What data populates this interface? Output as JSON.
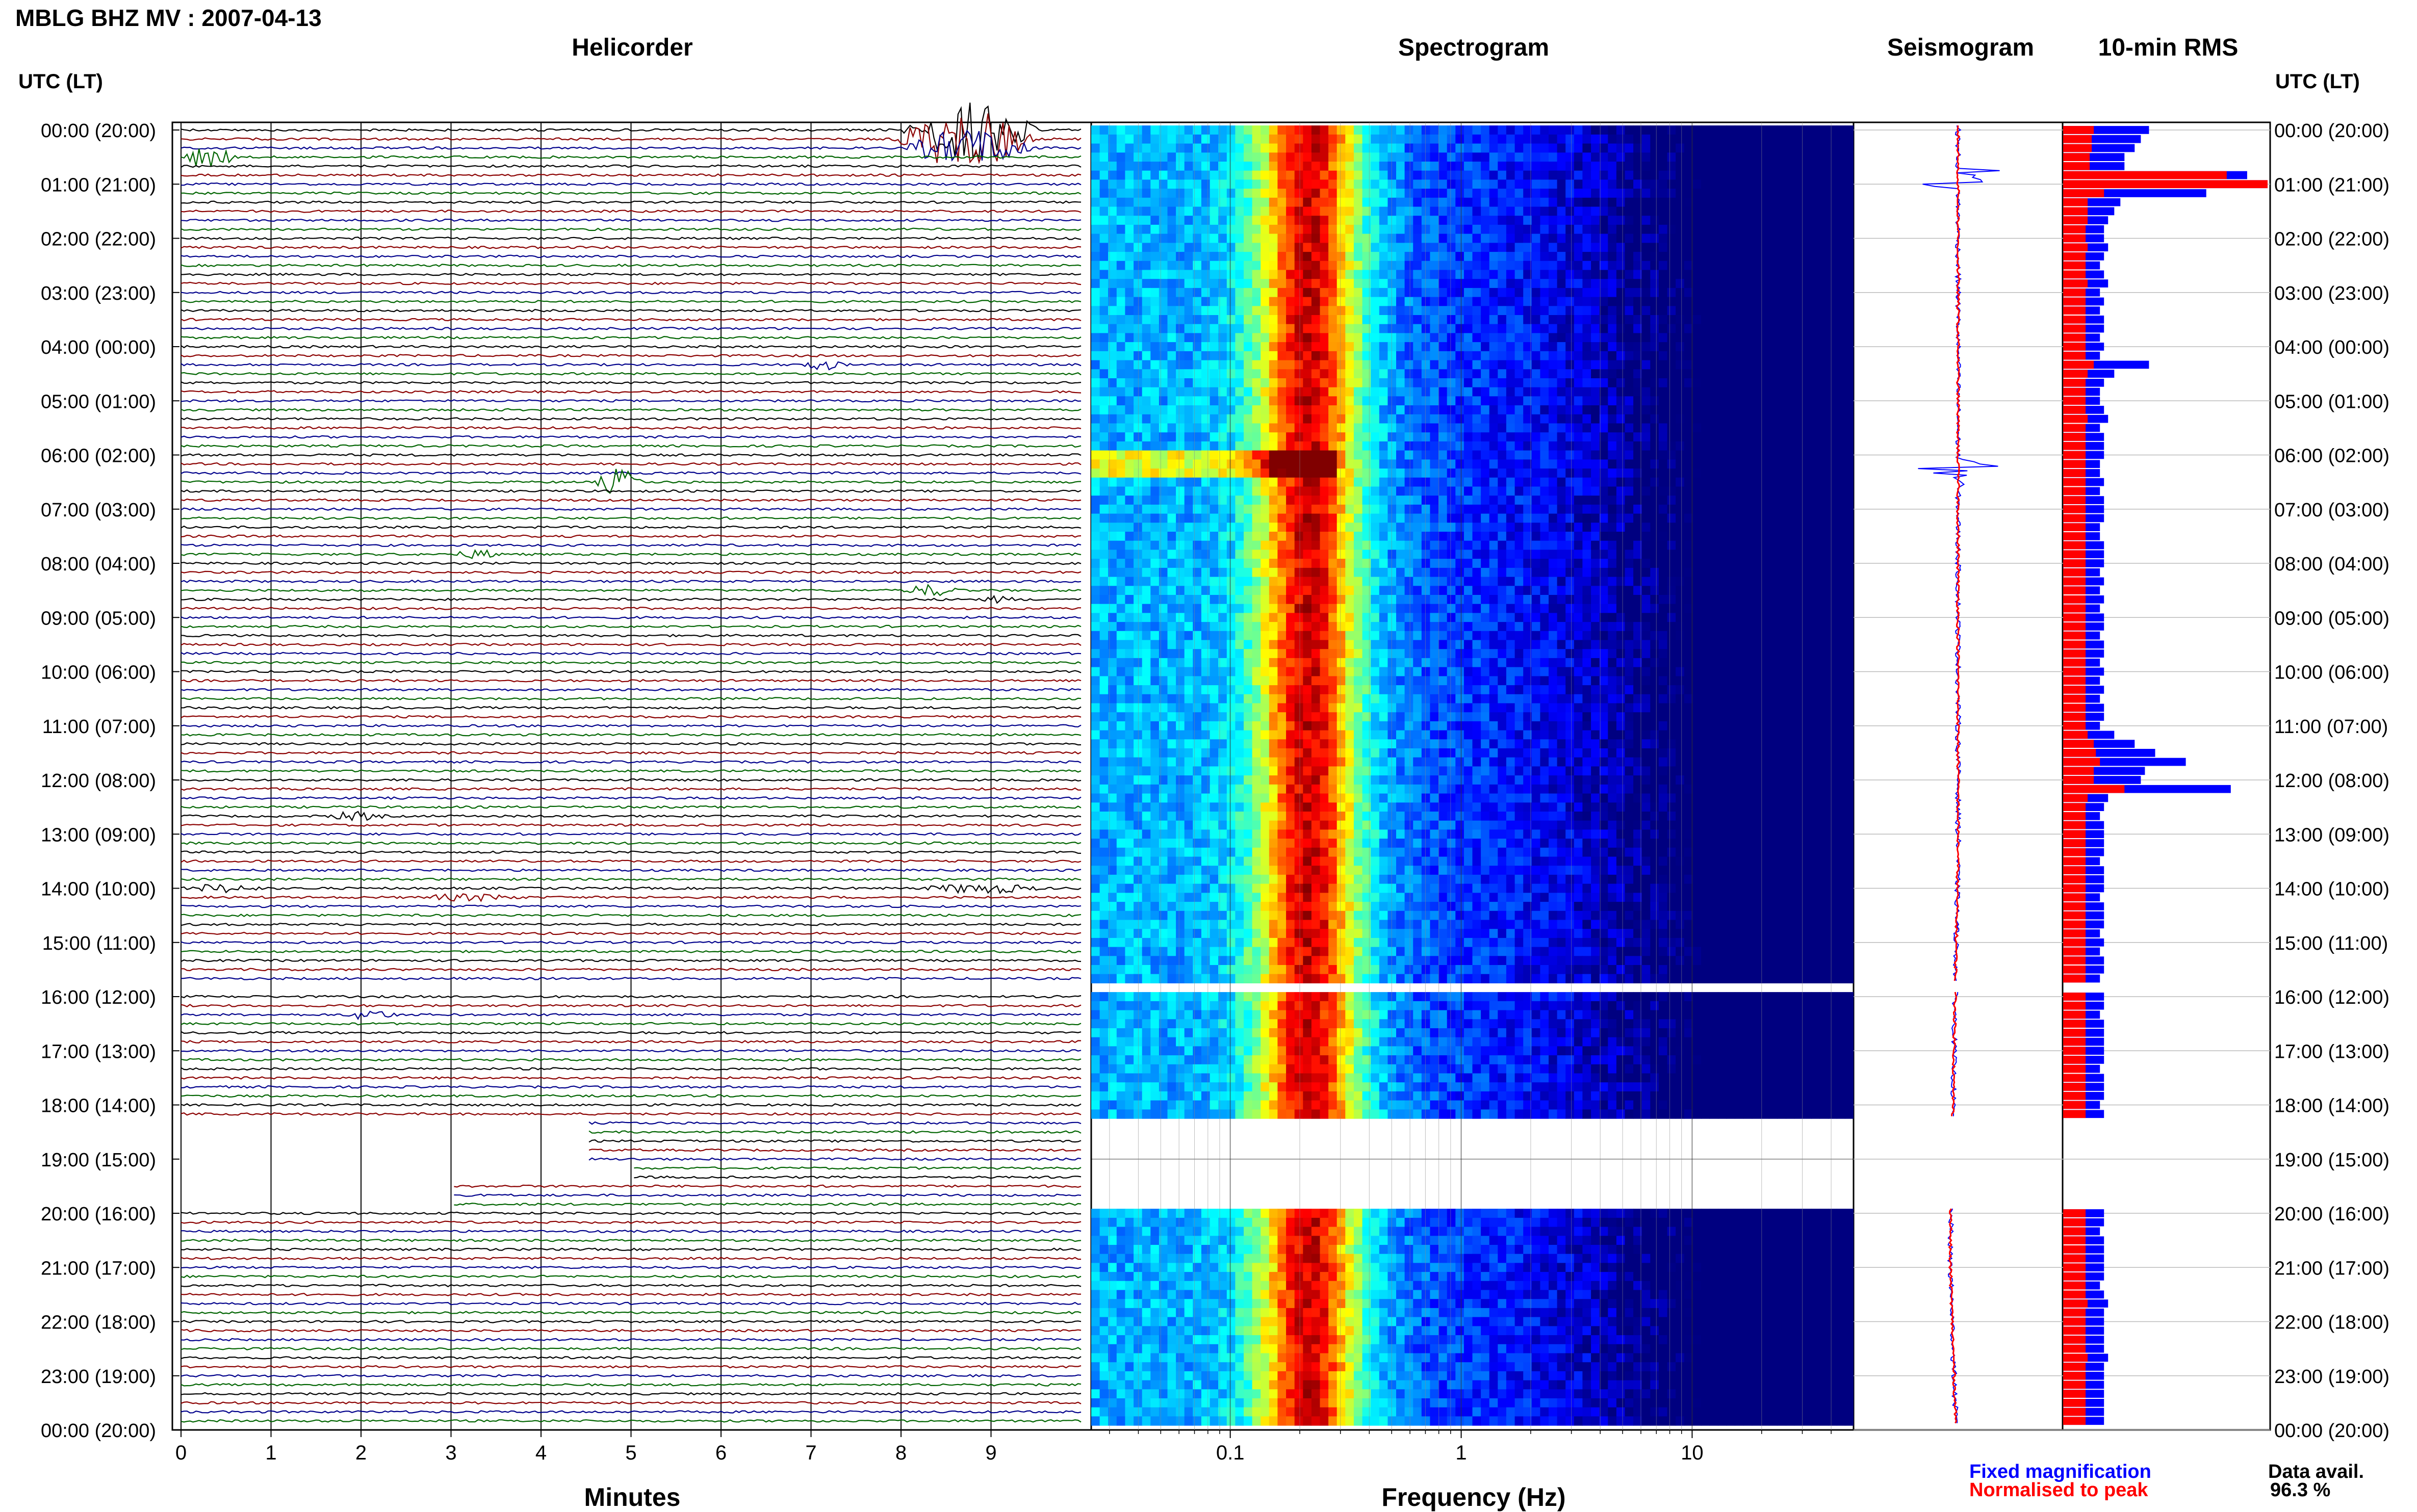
{
  "header": {
    "title": "MBLG BHZ MV : 2007-04-13"
  },
  "panel_titles": {
    "helicorder": "Helicorder",
    "spectrogram": "Spectrogram",
    "seismogram": "Seismogram",
    "rms": "10-min RMS"
  },
  "axis": {
    "left_corner_label": "UTC (LT)",
    "right_corner_label": "UTC (LT)",
    "helicorder_xlabel": "Minutes",
    "spectrogram_xlabel": "Frequency (Hz)"
  },
  "legend": {
    "fixed": "Fixed magnification",
    "normalised": "Normalised to peak",
    "fixed_color": "#0000ff",
    "normalised_color": "#ff0000"
  },
  "availability": {
    "label": "Data avail.",
    "value": "96.3 %"
  },
  "colors": {
    "trace_cycle": [
      "#000000",
      "#8b0000",
      "#00008b",
      "#006400"
    ],
    "spectrogram_colormap": "jet",
    "background": "#ffffff"
  },
  "chart_data": [
    {
      "type": "line",
      "name": "helicorder",
      "xlabel": "Minutes",
      "xlim": [
        0,
        10
      ],
      "x_ticks": [
        "0",
        "1",
        "2",
        "3",
        "4",
        "5",
        "6",
        "7",
        "8",
        "9"
      ],
      "rows_per_hour": 6,
      "hours": 24,
      "time_labels": [
        "00:00 (20:00)",
        "01:00 (21:00)",
        "02:00 (22:00)",
        "03:00 (23:00)",
        "04:00 (00:00)",
        "05:00 (01:00)",
        "06:00 (02:00)",
        "07:00 (03:00)",
        "08:00 (04:00)",
        "09:00 (05:00)",
        "10:00 (06:00)",
        "11:00 (07:00)",
        "12:00 (08:00)",
        "13:00 (09:00)",
        "14:00 (10:00)",
        "15:00 (11:00)",
        "16:00 (12:00)",
        "17:00 (13:00)",
        "18:00 (14:00)",
        "19:00 (15:00)",
        "20:00 (16:00)",
        "21:00 (17:00)",
        "22:00 (18:00)",
        "23:00 (19:00)",
        "00:00 (20:00)"
      ],
      "events": [
        {
          "row": 0,
          "start_min": 8.0,
          "end_min": 10.0,
          "amp": 4.0
        },
        {
          "row": 1,
          "start_min": 7.9,
          "end_min": 10.0,
          "amp": 4.0
        },
        {
          "row": 2,
          "start_min": 8.0,
          "end_min": 10.0,
          "amp": 2.5
        },
        {
          "row": 3,
          "start_min": 0.0,
          "end_min": 0.8,
          "amp": 1.5
        },
        {
          "row": 26,
          "start_min": 6.8,
          "end_min": 7.6,
          "amp": 0.6
        },
        {
          "row": 39,
          "start_min": 4.6,
          "end_min": 5.3,
          "amp": 1.8
        },
        {
          "row": 47,
          "start_min": 3.0,
          "end_min": 3.8,
          "amp": 0.5
        },
        {
          "row": 51,
          "start_min": 8.0,
          "end_min": 8.9,
          "amp": 0.7
        },
        {
          "row": 52,
          "start_min": 8.9,
          "end_min": 9.4,
          "amp": 0.4
        },
        {
          "row": 76,
          "start_min": 1.6,
          "end_min": 2.5,
          "amp": 0.5
        },
        {
          "row": 84,
          "start_min": 0.0,
          "end_min": 1.2,
          "amp": 0.5
        },
        {
          "row": 84,
          "start_min": 8.2,
          "end_min": 10.0,
          "amp": 0.6
        },
        {
          "row": 85,
          "start_min": 2.6,
          "end_min": 4.2,
          "amp": 0.4
        },
        {
          "row": 98,
          "start_min": 1.8,
          "end_min": 2.6,
          "amp": 0.6
        }
      ],
      "gaps": [
        {
          "row": 95,
          "start_min": 0.0,
          "end_min": 10.0
        },
        {
          "row": 110,
          "start_min": 0.0,
          "end_min": 4.5
        },
        {
          "row": 111,
          "start_min": 0.0,
          "end_min": 4.5
        },
        {
          "row": 112,
          "start_min": 0.0,
          "end_min": 4.5
        },
        {
          "row": 113,
          "start_min": 0.0,
          "end_min": 4.5
        },
        {
          "row": 114,
          "start_min": 0.0,
          "end_min": 4.5
        },
        {
          "row": 115,
          "start_min": 0.0,
          "end_min": 5.0
        },
        {
          "row": 116,
          "start_min": 0.0,
          "end_min": 5.0
        },
        {
          "row": 117,
          "start_min": 0.0,
          "end_min": 3.0
        },
        {
          "row": 118,
          "start_min": 0.0,
          "end_min": 3.0
        },
        {
          "row": 119,
          "start_min": 0.0,
          "end_min": 3.0
        }
      ]
    },
    {
      "type": "heatmap",
      "name": "spectrogram",
      "xlabel": "Frequency (Hz)",
      "x_scale": "log",
      "xlim": [
        0.025,
        50
      ],
      "x_ticks": [
        0.1,
        1,
        10
      ],
      "x_tick_labels": [
        "0.1",
        "1",
        "10"
      ],
      "colormap": "jet",
      "peak_band_hz": [
        0.15,
        0.3
      ],
      "gap_rows": [
        95,
        110,
        111,
        112,
        113,
        114,
        115,
        116,
        117,
        118,
        119
      ]
    },
    {
      "type": "line",
      "name": "seismogram",
      "series": [
        {
          "name": "Fixed magnification",
          "color": "#0000ff"
        },
        {
          "name": "Normalised to peak",
          "color": "#ff0000"
        }
      ]
    },
    {
      "type": "bar",
      "name": "10-min RMS",
      "series": [
        {
          "name": "Fixed magnification",
          "color": "#0000ff",
          "values": [
            0.42,
            0.38,
            0.35,
            0.3,
            0.3,
            0.9,
            1.0,
            0.7,
            0.28,
            0.25,
            0.22,
            0.2,
            0.2,
            0.22,
            0.2,
            0.18,
            0.2,
            0.22,
            0.18,
            0.2,
            0.18,
            0.2,
            0.2,
            0.18,
            0.2,
            0.18,
            0.42,
            0.25,
            0.2,
            0.18,
            0.18,
            0.2,
            0.22,
            0.18,
            0.2,
            0.2,
            0.2,
            0.18,
            0.18,
            0.2,
            0.18,
            0.2,
            0.2,
            0.2,
            0.18,
            0.18,
            0.2,
            0.2,
            0.2,
            0.18,
            0.2,
            0.18,
            0.2,
            0.18,
            0.2,
            0.2,
            0.18,
            0.2,
            0.2,
            0.18,
            0.2,
            0.18,
            0.2,
            0.18,
            0.2,
            0.2,
            0.18,
            0.25,
            0.35,
            0.45,
            0.6,
            0.4,
            0.38,
            0.82,
            0.22,
            0.2,
            0.18,
            0.2,
            0.2,
            0.2,
            0.2,
            0.18,
            0.2,
            0.2,
            0.2,
            0.18,
            0.2,
            0.2,
            0.2,
            0.18,
            0.2,
            0.18,
            0.2,
            0.2,
            0.18,
            0.2,
            0.2,
            0.2,
            0.18,
            0.2,
            0.2,
            0.2,
            0.2,
            0.2,
            0.18,
            0.2,
            0.2,
            0.2,
            0.18,
            0.2,
            0.2,
            0.2,
            0.18,
            0.2,
            0.2,
            0.2,
            0.18,
            0.2,
            0.2,
            0.2,
            0.2,
            0.2,
            0.18,
            0.2,
            0.2,
            0.2,
            0.2,
            0.2,
            0.18,
            0.2,
            0.22,
            0.2,
            0.2,
            0.2,
            0.2,
            0.2,
            0.22,
            0.2,
            0.2,
            0.2,
            0.2,
            0.2,
            0.2,
            0.2
          ]
        },
        {
          "name": "Normalised to peak",
          "color": "#ff0000",
          "values": [
            0.15,
            0.14,
            0.14,
            0.13,
            0.13,
            0.8,
            1.0,
            0.2,
            0.12,
            0.12,
            0.12,
            0.11,
            0.11,
            0.12,
            0.11,
            0.11,
            0.11,
            0.12,
            0.11,
            0.11,
            0.11,
            0.11,
            0.11,
            0.11,
            0.11,
            0.11,
            0.15,
            0.12,
            0.11,
            0.11,
            0.11,
            0.11,
            0.12,
            0.11,
            0.11,
            0.11,
            0.11,
            0.11,
            0.11,
            0.11,
            0.11,
            0.11,
            0.11,
            0.11,
            0.11,
            0.11,
            0.11,
            0.11,
            0.11,
            0.11,
            0.11,
            0.11,
            0.11,
            0.11,
            0.11,
            0.11,
            0.11,
            0.11,
            0.11,
            0.11,
            0.11,
            0.11,
            0.11,
            0.11,
            0.11,
            0.11,
            0.11,
            0.12,
            0.15,
            0.16,
            0.18,
            0.15,
            0.15,
            0.3,
            0.12,
            0.11,
            0.11,
            0.11,
            0.11,
            0.11,
            0.11,
            0.11,
            0.11,
            0.11,
            0.11,
            0.11,
            0.11,
            0.11,
            0.11,
            0.11,
            0.11,
            0.11,
            0.11,
            0.11,
            0.11,
            0.11,
            0.11,
            0.11,
            0.11,
            0.11,
            0.11,
            0.11,
            0.11,
            0.11,
            0.11,
            0.11,
            0.11,
            0.11,
            0.11,
            0.11,
            0.11,
            0.11,
            0.11,
            0.11,
            0.11,
            0.11,
            0.11,
            0.11,
            0.11,
            0.11,
            0.11,
            0.11,
            0.11,
            0.11,
            0.11,
            0.11,
            0.11,
            0.11,
            0.11,
            0.11,
            0.12,
            0.11,
            0.11,
            0.11,
            0.11,
            0.11,
            0.12,
            0.11,
            0.11,
            0.11,
            0.11,
            0.11,
            0.11,
            0.11
          ]
        }
      ]
    }
  ]
}
